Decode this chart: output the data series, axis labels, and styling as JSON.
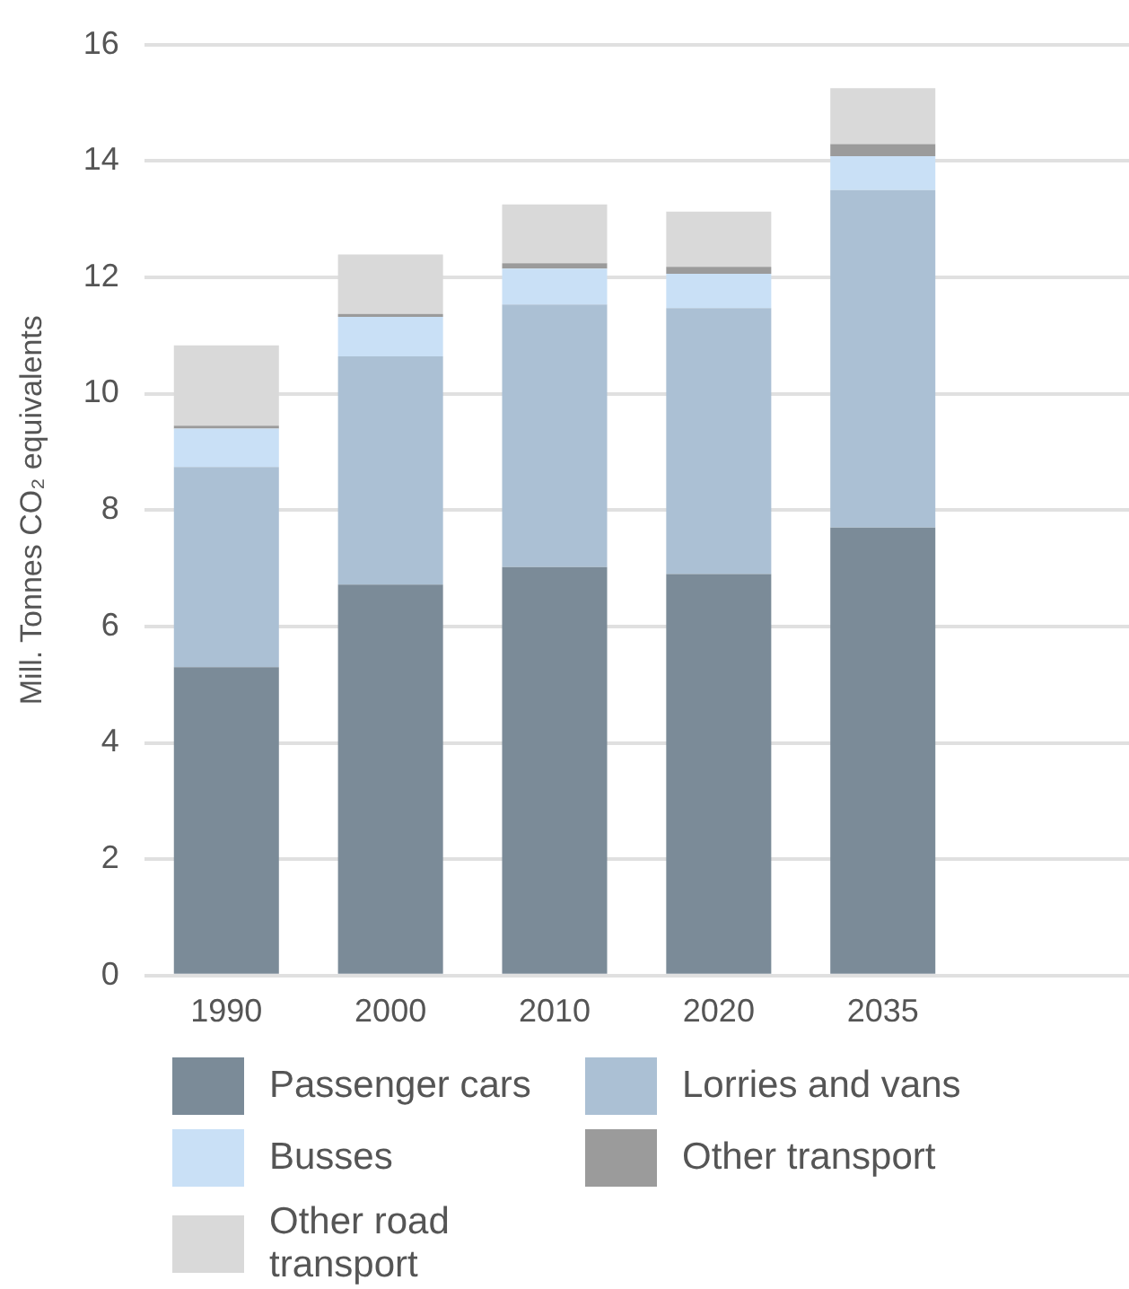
{
  "chart_data": {
    "type": "bar",
    "stacked": true,
    "ylabel": "Mill. Tonnes CO₂ equivalents",
    "categories": [
      "1990",
      "2000",
      "2010",
      "2020",
      "2035",
      null
    ],
    "series": [
      {
        "name": "Passenger cars",
        "color": "#7b8b98",
        "values": [
          5.3,
          6.72,
          7.02,
          6.9,
          7.7,
          null
        ]
      },
      {
        "name": "Lorries and vans",
        "color": "#abc0d4",
        "values": [
          3.44,
          3.92,
          4.51,
          4.57,
          5.8,
          null
        ]
      },
      {
        "name": "Busses",
        "color": "#c9e0f6",
        "values": [
          0.66,
          0.68,
          0.62,
          0.59,
          0.58,
          null
        ]
      },
      {
        "name": "Other transport",
        "color": "#9b9b9b",
        "values": [
          0.05,
          0.05,
          0.09,
          0.12,
          0.21,
          null
        ]
      },
      {
        "name": "Other road transport",
        "color": "#d9d9d9",
        "values": [
          1.38,
          1.02,
          1.01,
          0.95,
          0.96,
          null
        ]
      }
    ],
    "ylim": [
      0,
      16
    ],
    "yticks": [
      0,
      2,
      4,
      6,
      8,
      10,
      12,
      14,
      16
    ],
    "grid": "y",
    "legend": "bottom"
  }
}
